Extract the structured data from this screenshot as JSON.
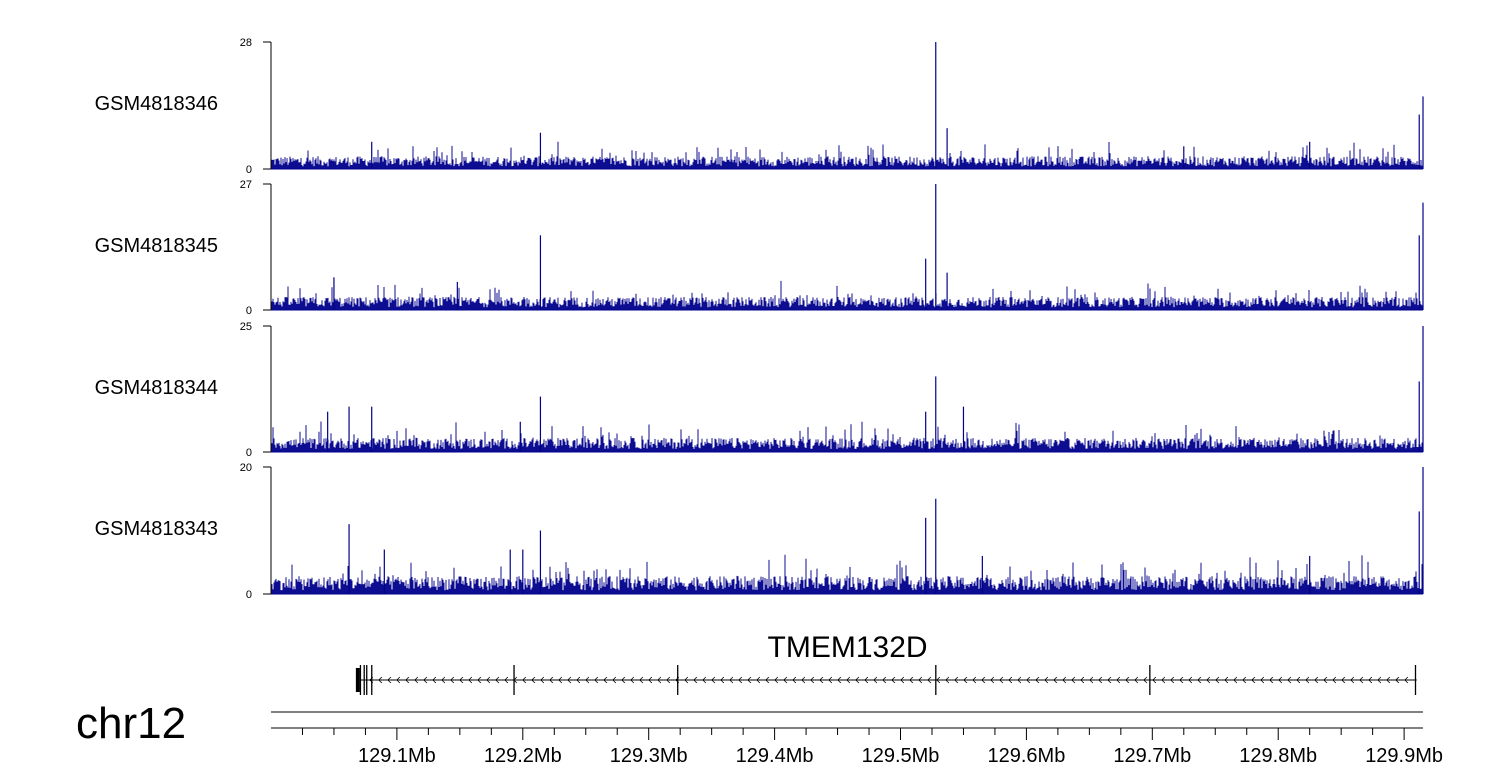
{
  "chart_data": {
    "type": "area",
    "chromosome": "chr12",
    "x_range_mb": [
      129.0,
      129.915
    ],
    "bar_color": "#00008b",
    "tracks": [
      {
        "name": "GSM4818346",
        "ymax": 28,
        "ymin": 0,
        "peaks": [
          [
            129.08,
            6
          ],
          [
            129.214,
            8
          ],
          [
            129.528,
            28
          ],
          [
            129.537,
            9
          ],
          [
            129.725,
            5
          ],
          [
            129.825,
            6
          ],
          [
            129.912,
            12
          ],
          [
            129.915,
            16
          ]
        ]
      },
      {
        "name": "GSM4818345",
        "ymax": 27,
        "ymin": 0,
        "peaks": [
          [
            129.05,
            7
          ],
          [
            129.148,
            6
          ],
          [
            129.214,
            16
          ],
          [
            129.52,
            11
          ],
          [
            129.528,
            27
          ],
          [
            129.537,
            8
          ],
          [
            129.912,
            16
          ],
          [
            129.915,
            23
          ]
        ]
      },
      {
        "name": "GSM4818344",
        "ymax": 25,
        "ymin": 0,
        "peaks": [
          [
            129.045,
            8
          ],
          [
            129.062,
            9
          ],
          [
            129.08,
            9
          ],
          [
            129.198,
            6
          ],
          [
            129.214,
            11
          ],
          [
            129.52,
            8
          ],
          [
            129.528,
            15
          ],
          [
            129.55,
            9
          ],
          [
            129.912,
            14
          ],
          [
            129.915,
            25
          ]
        ]
      },
      {
        "name": "GSM4818343",
        "ymax": 20,
        "ymin": 0,
        "peaks": [
          [
            129.062,
            11
          ],
          [
            129.09,
            7
          ],
          [
            129.19,
            7
          ],
          [
            129.2,
            7
          ],
          [
            129.214,
            10
          ],
          [
            129.52,
            12
          ],
          [
            129.528,
            15
          ],
          [
            129.565,
            6
          ],
          [
            129.825,
            6
          ],
          [
            129.912,
            13
          ],
          [
            129.915,
            20
          ]
        ]
      }
    ],
    "gene": {
      "name": "TMEM132D",
      "start_mb": 129.069,
      "end_mb": 129.91,
      "strand": "-",
      "exons_mb": [
        129.069,
        129.071,
        129.074,
        129.076,
        129.08,
        129.193,
        129.323,
        129.528,
        129.698,
        129.909
      ]
    },
    "x_ticks": [
      "129.1Mb",
      "129.2Mb",
      "129.3Mb",
      "129.4Mb",
      "129.5Mb",
      "129.6Mb",
      "129.7Mb",
      "129.8Mb",
      "129.9Mb"
    ],
    "x_tick_values_mb": [
      129.1,
      129.2,
      129.3,
      129.4,
      129.5,
      129.6,
      129.7,
      129.8,
      129.9
    ]
  }
}
